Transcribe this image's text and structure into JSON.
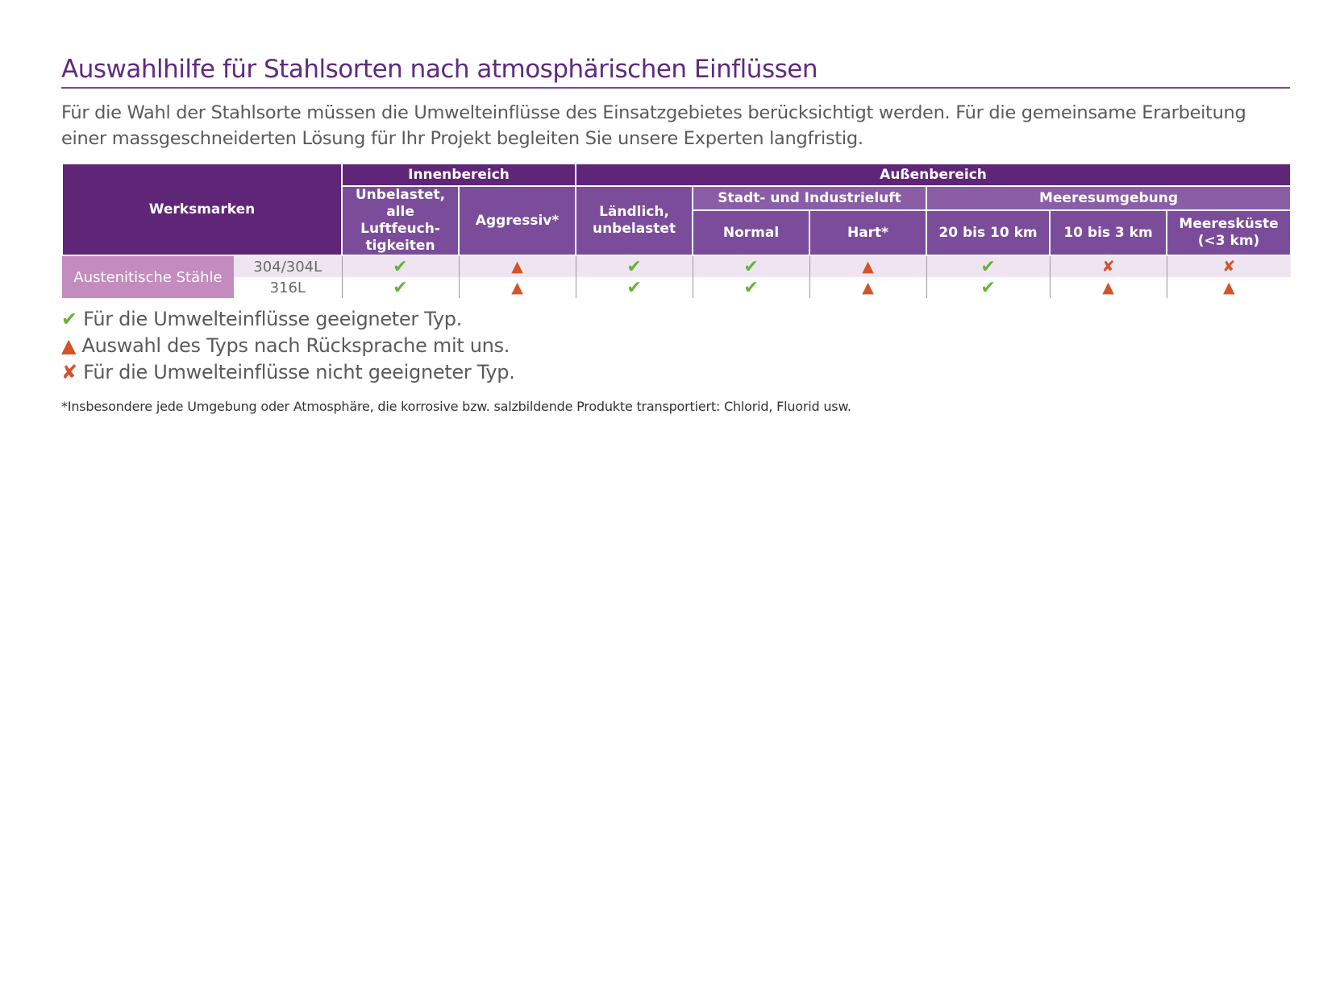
{
  "title": "Auswahlhilfe für Stahlsorten nach atmosphärischen Einflüssen",
  "intro": "Für die Wahl der Stahlsorte müssen die Umwelteinflüsse des Einsatzgebietes berücksichtigt werden. Für die gemeinsame Erarbeitung einer massgeschneiderten Lösung für Ihr Projekt begleiten Sie unsere Experten langfristig.",
  "table": {
    "header": {
      "werksmarken": "Werksmarken",
      "innen": "Innenbereich",
      "aussen": "Außenbereich",
      "stadt": "Stadt- und Industrieluft",
      "meer": "Meeresumgebung",
      "cols": [
        "Unbelastet, alle Luftfeuch-tigkeiten",
        "Aggressiv*",
        "Ländlich, unbelastet",
        "Normal",
        "Hart*",
        "20 bis 10 km",
        "10 bis 3 km",
        "Meeresküste (<3 km)"
      ]
    },
    "group": "Austenitische Stähle",
    "rows": [
      {
        "grade": "304/304L",
        "cells": [
          "ok",
          "tri",
          "ok",
          "ok",
          "tri",
          "ok",
          "no",
          "no"
        ]
      },
      {
        "grade": "316L",
        "cells": [
          "ok",
          "tri",
          "ok",
          "ok",
          "tri",
          "ok",
          "tri",
          "tri"
        ]
      }
    ]
  },
  "symbols": {
    "ok": "✔",
    "tri": "▲",
    "no": "✘"
  },
  "legend": {
    "ok": "Für die Umwelteinflüsse geeigneter Typ.",
    "tri": "Auswahl des Typs nach Rücksprache mit uns.",
    "no": "Für die Umwelteinflüsse nicht geeigneter Typ."
  },
  "footnote": "*Insbesondere jede Umgebung oder Atmosphäre, die korrosive bzw. salzbildende Produkte transportiert: Chlorid, Fluorid usw.",
  "colors": {
    "purple_dark": "#5f2577",
    "purple_mid": "#7b4c99",
    "group_pink": "#c48bbf",
    "green": "#6ab23c",
    "orange": "#d2542a"
  }
}
